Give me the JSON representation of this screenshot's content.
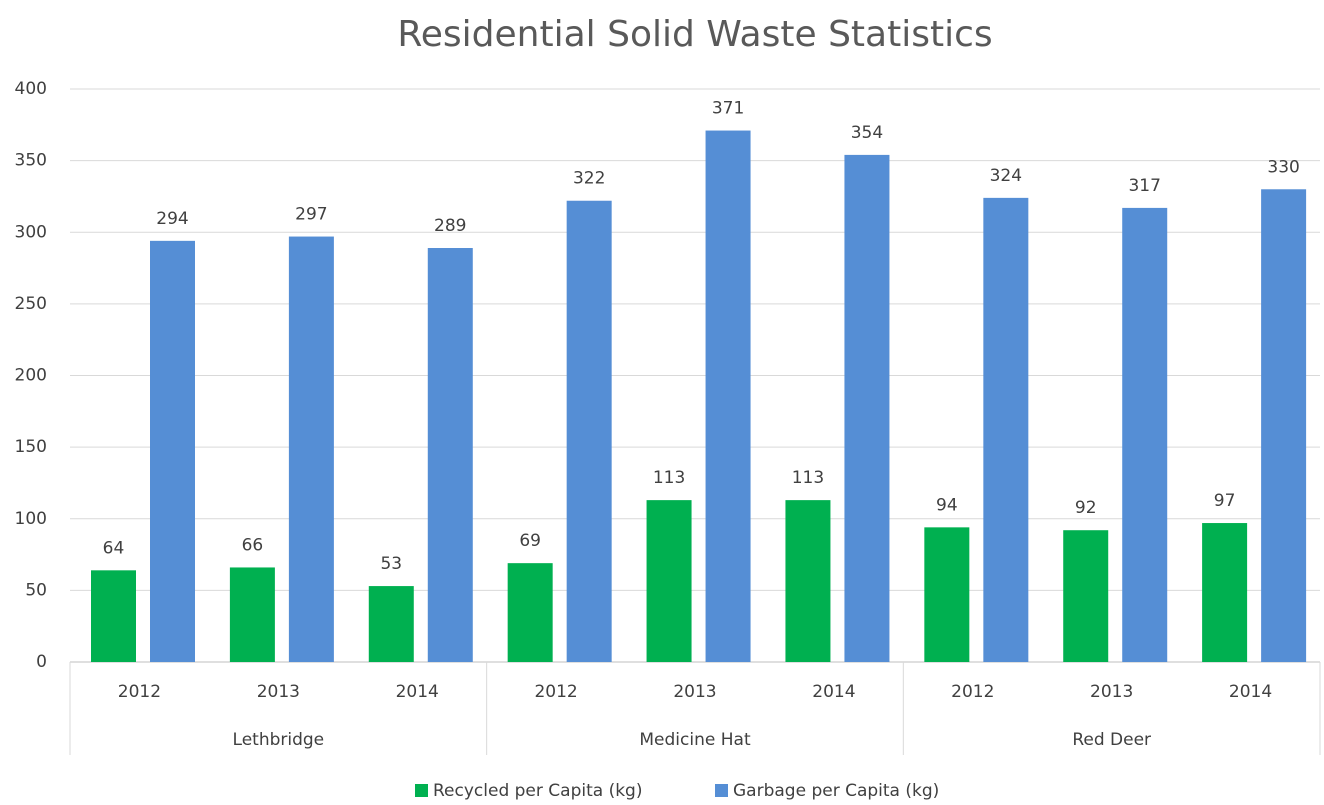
{
  "chart_data": {
    "type": "bar",
    "title": "Residential Solid Waste Statistics",
    "groups": [
      {
        "name": "Lethbridge",
        "categories": [
          "2012",
          "2013",
          "2014"
        ]
      },
      {
        "name": "Medicine Hat",
        "categories": [
          "2012",
          "2013",
          "2014"
        ]
      },
      {
        "name": "Red Deer",
        "categories": [
          "2012",
          "2013",
          "2014"
        ]
      }
    ],
    "series": [
      {
        "name": "Recycled per Capita (kg)",
        "color": "#00b050",
        "values": [
          64,
          66,
          53,
          69,
          113,
          113,
          94,
          92,
          97
        ]
      },
      {
        "name": "Garbage per Capita (kg)",
        "color": "#558ed5",
        "values": [
          294,
          297,
          289,
          322,
          371,
          354,
          324,
          317,
          330
        ]
      }
    ],
    "ylim": [
      0,
      400
    ],
    "yticks": [
      0,
      50,
      100,
      150,
      200,
      250,
      300,
      350,
      400
    ],
    "grid": true,
    "legend": "bottom"
  }
}
